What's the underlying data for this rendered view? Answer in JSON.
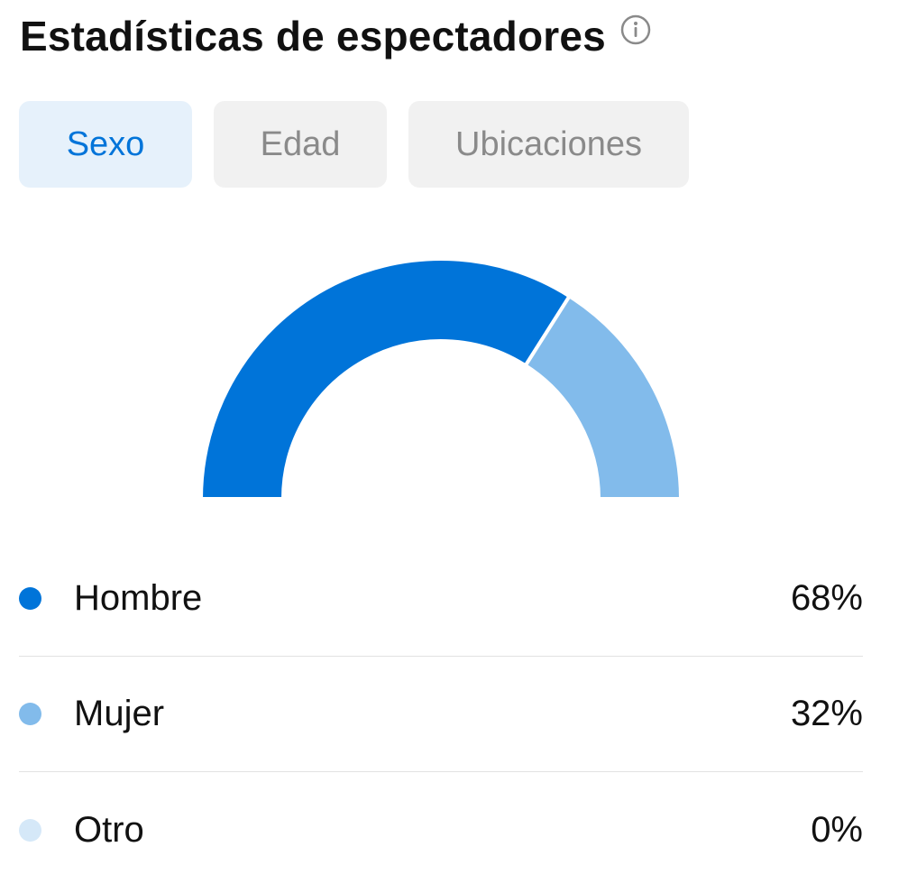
{
  "header": {
    "title": "Estadísticas de espectadores",
    "info_icon": "info-circle-icon"
  },
  "tabs": [
    {
      "label": "Sexo",
      "active": true
    },
    {
      "label": "Edad",
      "active": false
    },
    {
      "label": "Ubicaciones",
      "active": false
    }
  ],
  "colors": {
    "accent": "#0074d9",
    "hombre": "#0074d9",
    "mujer": "#82bbeb",
    "otro": "#d5e8f8",
    "active_tab_bg": "#e6f1fb",
    "inactive_tab_bg": "#f1f1f1",
    "inactive_tab_text": "#8a8a8a"
  },
  "chart_data": {
    "type": "pie",
    "shape": "semicircle-donut",
    "categories": [
      "Hombre",
      "Mujer",
      "Otro"
    ],
    "values": [
      68,
      32,
      0
    ],
    "value_labels": [
      "68%",
      "32%",
      "0%"
    ],
    "colors": [
      "#0074d9",
      "#82bbeb",
      "#d5e8f8"
    ]
  }
}
